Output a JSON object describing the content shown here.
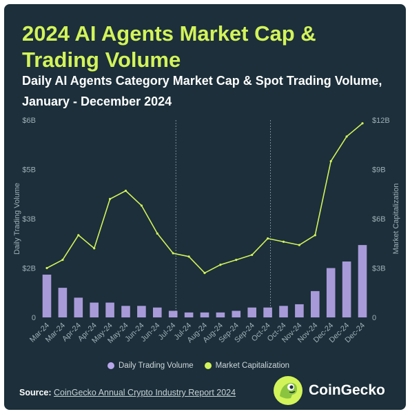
{
  "header": {
    "title": "2024 AI Agents Market Cap & Trading Volume",
    "subtitle": "Daily AI Agents Category Market Cap & Spot Trading Volume, January - December 2024"
  },
  "footer": {
    "source_label": "Source:",
    "source_text": "CoinGecko Annual Crypto Industry Report 2024",
    "brand_name": "CoinGecko"
  },
  "colors": {
    "background": "#1c2f3a",
    "accent_green": "#d2f35a",
    "volume_purple": "#b8a6ea"
  },
  "legend": {
    "volume_label": "Daily Trading Volume",
    "market_cap_label": "Market Capitalization"
  },
  "chart_data": {
    "type": "bar+line",
    "x_tick_labels": [
      "Mar-24",
      "Mar-24",
      "Apr-24",
      "Apr-24",
      "May-24",
      "May-24",
      "Jun-24",
      "Jun-24",
      "Jul-24",
      "Jul-24",
      "Aug-24",
      "Aug-24",
      "Sep-24",
      "Sep-24",
      "Oct-24",
      "Oct-24",
      "Nov-24",
      "Nov-24",
      "Dec-24",
      "Dec-24",
      "Dec-24"
    ],
    "left_axis": {
      "title": "Daily Trading Volume",
      "tick_labels": [
        "0",
        "$2B",
        "$3B",
        "$5B",
        "$6B"
      ],
      "ylim": [
        0,
        6
      ]
    },
    "right_axis": {
      "title": "Market Capitalization",
      "tick_labels": [
        "0",
        "$3B",
        "$6B",
        "$9B",
        "$12B"
      ],
      "ylim": [
        0,
        12
      ]
    },
    "vertical_reference_lines": [
      "Jul-24",
      "Oct-24"
    ],
    "grid": false,
    "legend_position": "bottom-center",
    "series": [
      {
        "name": "Market Capitalization",
        "axis": "right",
        "x": [
          "Mar-24",
          "Mar-24",
          "Apr-24",
          "Apr-24",
          "May-24",
          "May-24",
          "Jun-24",
          "Jun-24",
          "Jul-24",
          "Jul-24",
          "Aug-24",
          "Aug-24",
          "Sep-24",
          "Sep-24",
          "Oct-24",
          "Oct-24",
          "Nov-24",
          "Nov-24",
          "Dec-24",
          "Dec-24",
          "Dec-24"
        ],
        "values": [
          3.0,
          3.5,
          5.0,
          4.2,
          7.2,
          7.7,
          6.8,
          5.1,
          3.9,
          3.7,
          2.7,
          3.2,
          3.5,
          3.8,
          4.8,
          4.6,
          4.4,
          5.0,
          9.5,
          11.0,
          11.8
        ]
      },
      {
        "name": "Daily Trading Volume",
        "axis": "left",
        "x": [
          "Mar-24",
          "Mar-24",
          "Apr-24",
          "Apr-24",
          "May-24",
          "May-24",
          "Jun-24",
          "Jun-24",
          "Jul-24",
          "Jul-24",
          "Aug-24",
          "Aug-24",
          "Sep-24",
          "Sep-24",
          "Oct-24",
          "Oct-24",
          "Nov-24",
          "Nov-24",
          "Dec-24",
          "Dec-24",
          "Dec-24"
        ],
        "values": [
          1.3,
          0.9,
          0.6,
          0.45,
          0.45,
          0.35,
          0.35,
          0.3,
          0.2,
          0.15,
          0.15,
          0.15,
          0.2,
          0.3,
          0.3,
          0.35,
          0.4,
          0.8,
          1.5,
          1.7,
          2.2
        ]
      }
    ]
  }
}
